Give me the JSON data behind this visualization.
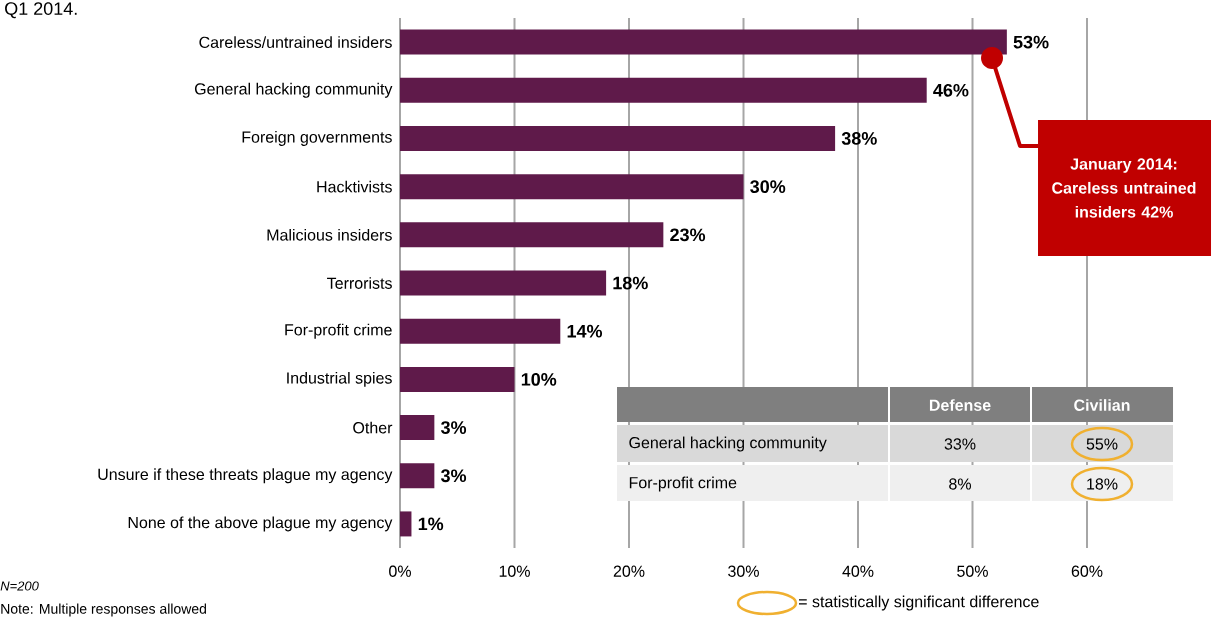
{
  "chart_data": {
    "type": "bar",
    "orientation": "horizontal",
    "title": "Q1 2014.",
    "categories": [
      "Careless/untrained insiders",
      "General hacking community",
      "Foreign governments",
      "Hacktivists",
      "Malicious insiders",
      "Terrorists",
      "For-profit crime",
      "Industrial spies",
      "Other",
      "Unsure if these threats plague my agency",
      "None of the above plague my agency"
    ],
    "values": [
      53,
      46,
      38,
      30,
      23,
      18,
      14,
      10,
      3,
      3,
      1
    ],
    "value_labels": [
      "53%",
      "46%",
      "38%",
      "30%",
      "23%",
      "18%",
      "14%",
      "10%",
      "3%",
      "3%",
      "1%"
    ],
    "color": "#5f1a4a",
    "xlim": [
      0,
      60
    ],
    "xticks": [
      {
        "value": 0,
        "label": "0%"
      },
      {
        "value": 10,
        "label": "10%"
      },
      {
        "value": 20,
        "label": "20%"
      },
      {
        "value": 30,
        "label": "30%"
      },
      {
        "value": 40,
        "label": "40%"
      },
      {
        "value": 50,
        "label": "50%"
      },
      {
        "value": 60,
        "label": "60%"
      }
    ],
    "grid": "x",
    "annotations": [
      "January 2014: Careless untrained insiders 42%",
      "Defense",
      "Civilian",
      "General hacking community",
      "33%",
      "55%",
      "For-profit crime",
      "8%",
      "18%",
      "= statistically significant difference",
      "N=200",
      "Note: Multiple responses allowed"
    ]
  }
}
